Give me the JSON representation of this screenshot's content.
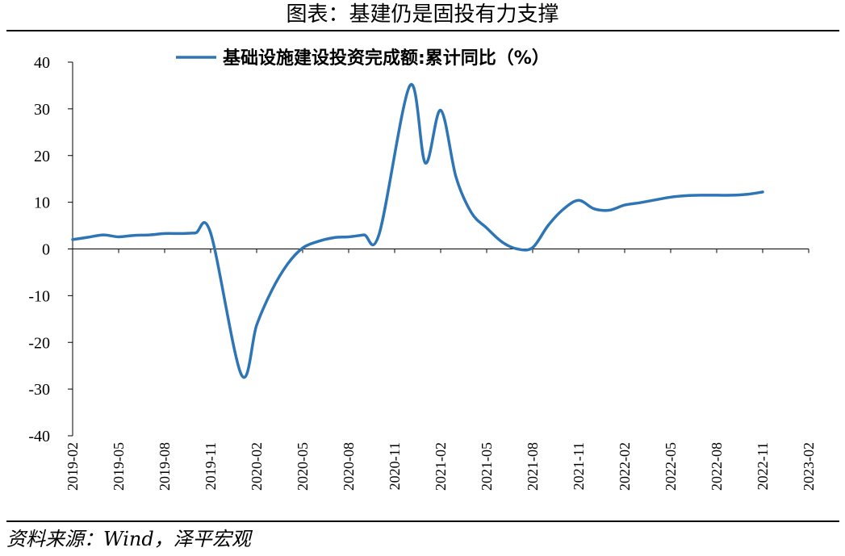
{
  "figure": {
    "title": "图表：基建仍是固投有力支撑",
    "source": "资料来源：Wind，泽平宏观"
  },
  "chart_data": {
    "type": "line",
    "title": "",
    "xlabel": "",
    "ylabel": "",
    "ylim": [
      -40,
      40
    ],
    "yticks": [
      40,
      30,
      20,
      10,
      0,
      -10,
      -20,
      -30,
      -40
    ],
    "xtick_labels": [
      "2019-02",
      "2019-05",
      "2019-08",
      "2019-11",
      "2020-02",
      "2020-05",
      "2020-08",
      "2020-11",
      "2021-02",
      "2021-05",
      "2021-08",
      "2021-11",
      "2022-02",
      "2022-05",
      "2022-08",
      "2022-11",
      "2023-02"
    ],
    "grid": false,
    "legend_position": "top",
    "series": [
      {
        "name": "基础设施建设投资完成额:累计同比（%）",
        "color": "#2e75b6",
        "x": [
          "2019-02",
          "2019-03",
          "2019-04",
          "2019-05",
          "2019-06",
          "2019-07",
          "2019-08",
          "2019-09",
          "2019-10",
          "2019-11",
          "2019-12",
          "2020-01",
          "2020-02",
          "2020-03",
          "2020-04",
          "2020-05",
          "2020-06",
          "2020-07",
          "2020-08",
          "2020-09",
          "2020-10",
          "2020-11",
          "2020-12",
          "2021-01",
          "2021-02",
          "2021-03",
          "2021-04",
          "2021-05",
          "2021-06",
          "2021-07",
          "2021-08",
          "2021-09",
          "2021-10",
          "2021-11",
          "2021-12",
          "2022-01",
          "2022-02",
          "2022-03",
          "2022-04",
          "2022-05",
          "2022-06",
          "2022-07",
          "2022-08",
          "2022-09",
          "2022-10",
          "2022-11",
          "2022-12",
          "2023-01",
          "2023-02"
        ],
        "values": [
          2.0,
          2.5,
          3.0,
          2.6,
          2.9,
          3.0,
          3.3,
          3.3,
          3.4,
          3.4,
          null,
          -26.9,
          -16.3,
          -8.8,
          -3.3,
          0.2,
          1.6,
          2.4,
          2.6,
          3.0,
          3.3,
          null,
          35.0,
          18.4,
          29.7,
          15.4,
          7.8,
          4.5,
          1.5,
          0.0,
          0.3,
          5.0,
          8.5,
          10.4,
          8.6,
          8.3,
          9.4,
          9.9,
          10.5,
          11.1,
          11.4,
          11.5,
          11.5,
          11.5,
          11.7,
          12.2,
          null,
          null,
          null
        ]
      }
    ]
  }
}
